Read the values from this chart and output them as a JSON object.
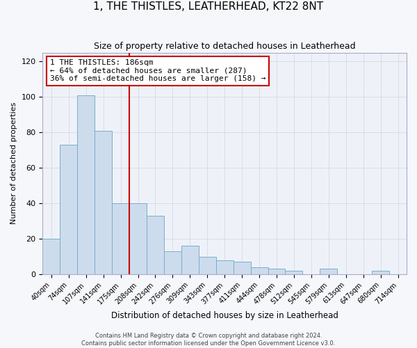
{
  "title": "1, THE THISTLES, LEATHERHEAD, KT22 8NT",
  "subtitle": "Size of property relative to detached houses in Leatherhead",
  "xlabel": "Distribution of detached houses by size in Leatherhead",
  "ylabel": "Number of detached properties",
  "bar_labels": [
    "40sqm",
    "74sqm",
    "107sqm",
    "141sqm",
    "175sqm",
    "208sqm",
    "242sqm",
    "276sqm",
    "309sqm",
    "343sqm",
    "377sqm",
    "411sqm",
    "444sqm",
    "478sqm",
    "512sqm",
    "545sqm",
    "579sqm",
    "613sqm",
    "647sqm",
    "680sqm",
    "714sqm"
  ],
  "bar_values": [
    20,
    73,
    101,
    81,
    40,
    40,
    33,
    13,
    16,
    10,
    8,
    7,
    4,
    3,
    2,
    0,
    3,
    0,
    0,
    2,
    0
  ],
  "bar_color": "#ccdcec",
  "bar_edge_color": "#7aadcc",
  "vline_x": 4.5,
  "vline_color": "#cc0000",
  "annotation_text": "1 THE THISTLES: 186sqm\n← 64% of detached houses are smaller (287)\n36% of semi-detached houses are larger (158) →",
  "annotation_box_facecolor": "#ffffff",
  "annotation_box_edge": "#cc0000",
  "ylim": [
    0,
    125
  ],
  "yticks": [
    0,
    20,
    40,
    60,
    80,
    100,
    120
  ],
  "grid_color": "#d8dce8",
  "plot_bg_color": "#eef2f8",
  "fig_bg_color": "#f5f7fa",
  "footnote": "Contains HM Land Registry data © Crown copyright and database right 2024.\nContains public sector information licensed under the Open Government Licence v3.0."
}
